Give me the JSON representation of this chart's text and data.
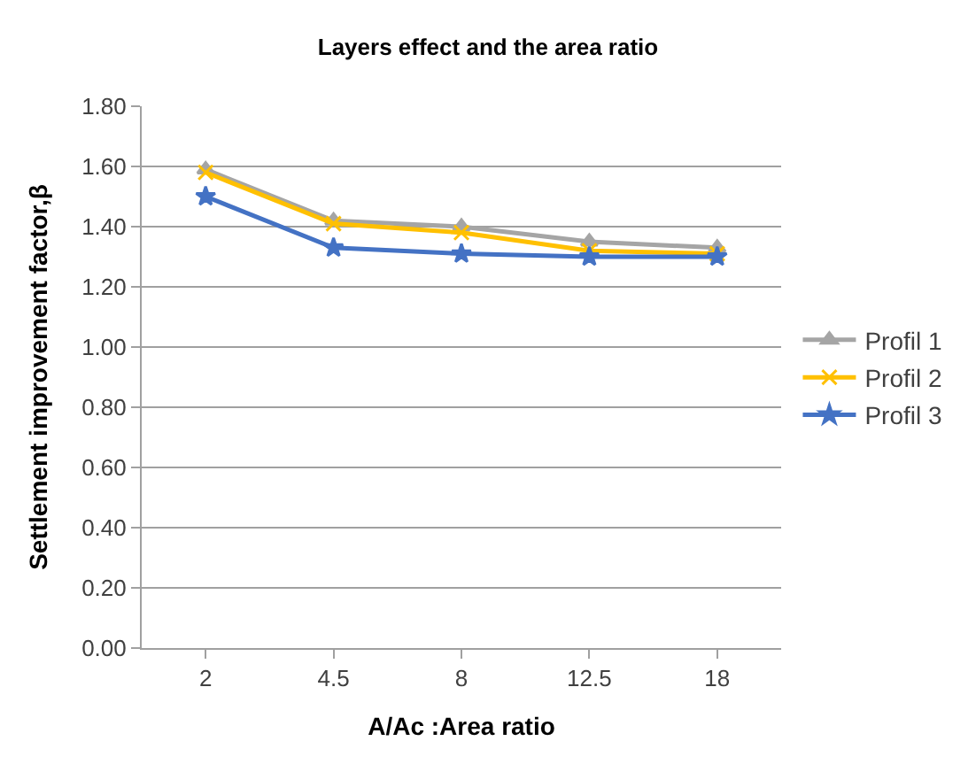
{
  "chart_data": {
    "type": "line",
    "title": "Layers effect and the area ratio",
    "xlabel": "A/Ac :Area ratio",
    "ylabel": "Settlement improvement factor,β",
    "categories": [
      "2",
      "4.5",
      "8",
      "12.5",
      "18"
    ],
    "series": [
      {
        "name": "Profil 1",
        "color": "#a5a5a5",
        "marker": "triangle",
        "values": [
          1.59,
          1.42,
          1.4,
          1.35,
          1.33
        ]
      },
      {
        "name": "Profil 2",
        "color": "#ffc000",
        "marker": "cross",
        "values": [
          1.58,
          1.41,
          1.38,
          1.32,
          1.31
        ]
      },
      {
        "name": "Profil 3",
        "color": "#4472c4",
        "marker": "star",
        "values": [
          1.5,
          1.33,
          1.31,
          1.3,
          1.3
        ]
      }
    ],
    "ylim": [
      0,
      1.8
    ],
    "yticks": [
      {
        "value": 0,
        "label": "0.00"
      },
      {
        "value": 0.2,
        "label": "0.20"
      },
      {
        "value": 0.4,
        "label": "0.40"
      },
      {
        "value": 0.6,
        "label": "0.60"
      },
      {
        "value": 0.8,
        "label": "0.80"
      },
      {
        "value": 1.0,
        "label": "1.00"
      },
      {
        "value": 1.2,
        "label": "1.20"
      },
      {
        "value": 1.4,
        "label": "1.40"
      },
      {
        "value": 1.6,
        "label": "1.60"
      },
      {
        "value": 1.8,
        "label": "1.80"
      }
    ],
    "grid": "y",
    "legend": "right"
  }
}
